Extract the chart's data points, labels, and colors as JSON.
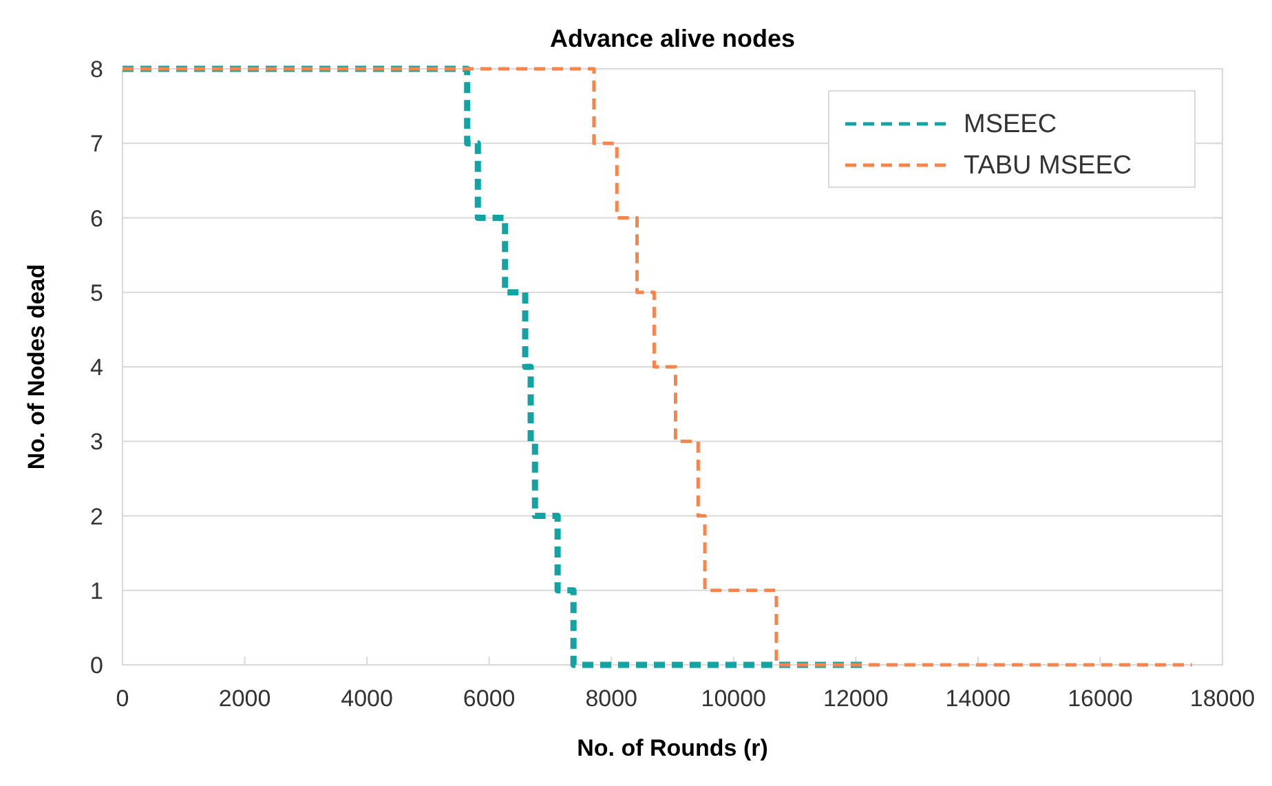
{
  "chart_data": {
    "type": "step",
    "title": "Advance alive nodes",
    "xlabel": "No. of Rounds (r)",
    "ylabel": "No. of  Nodes dead",
    "xlim": [
      0,
      18000
    ],
    "xticks": [
      0,
      2000,
      4000,
      6000,
      8000,
      10000,
      12000,
      14000,
      16000,
      18000
    ],
    "ylim": [
      0,
      8
    ],
    "yticks": [
      0,
      1,
      2,
      3,
      4,
      5,
      6,
      7,
      8
    ],
    "grid": "y",
    "legend": "top right",
    "line_style": "dashed",
    "marker": "none",
    "series": [
      {
        "name": "MSEEC",
        "color": "#13a3a3",
        "x": [
          0,
          5640,
          5815,
          6260,
          6590,
          6680,
          6750,
          7120,
          7380,
          12100
        ],
        "values": [
          8,
          7,
          6,
          5,
          4,
          3,
          2,
          1,
          0,
          0
        ]
      },
      {
        "name": "TABU MSEEC",
        "color": "#f7844a",
        "x": [
          0,
          7715,
          8090,
          8420,
          8700,
          9050,
          9420,
          9530,
          10700,
          17500
        ],
        "values": [
          8,
          7,
          6,
          5,
          4,
          3,
          2,
          1,
          0,
          0
        ]
      }
    ]
  }
}
